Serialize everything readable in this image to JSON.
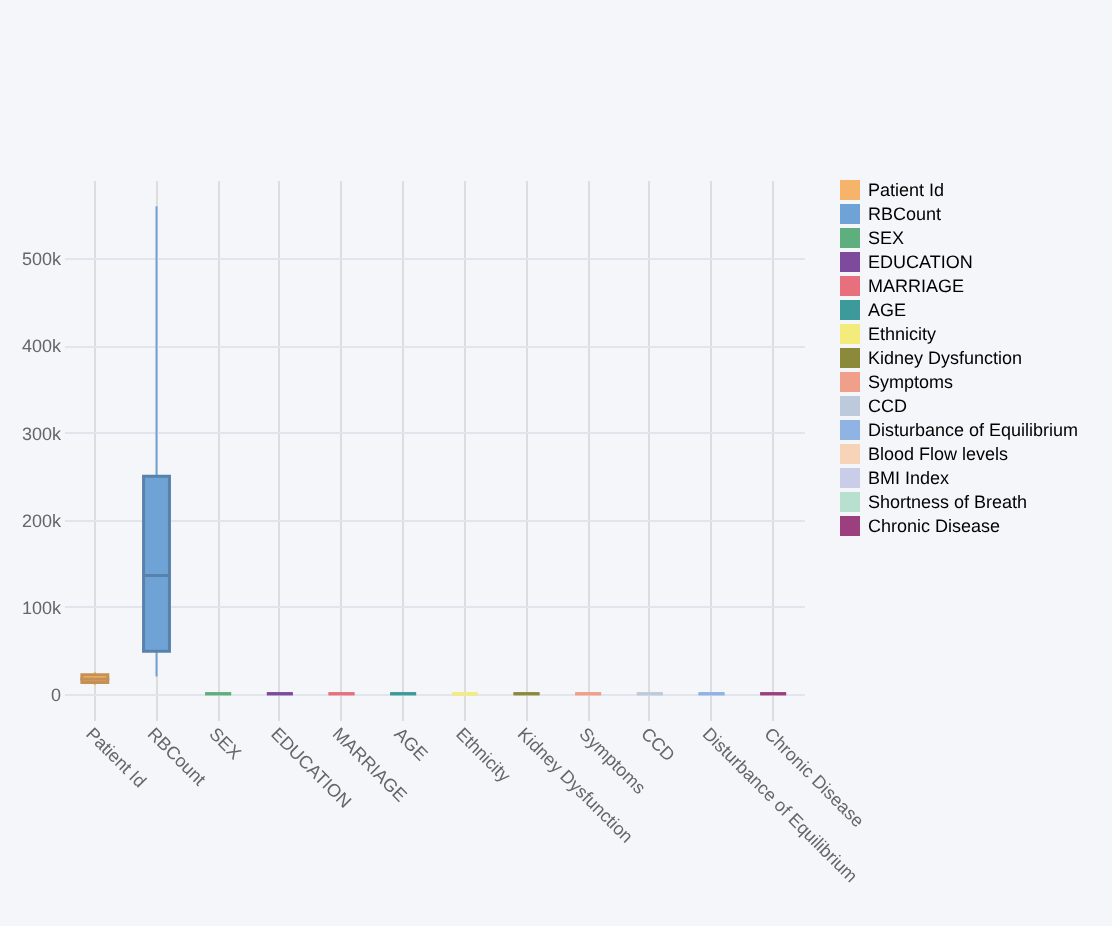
{
  "chart_data": {
    "type": "box",
    "categories": [
      "Patient Id",
      "RBCount",
      "SEX",
      "EDUCATION",
      "MARRIAGE",
      "AGE",
      "Ethnicity",
      "Kidney Dysfunction",
      "Symptoms",
      "CCD",
      "Disturbance of Equilibrium",
      "Chronic Disease"
    ],
    "series": [
      {
        "name": "Patient Id",
        "color": "#f5b46a",
        "boxes": [
          {
            "low": 10000,
            "q1": 13000,
            "median": 17000,
            "q3": 22000,
            "high": 25000
          },
          null,
          null,
          null,
          null,
          null,
          null,
          null,
          null,
          null,
          null,
          null
        ]
      },
      {
        "name": "RBCount",
        "color": "#6fa3d6",
        "boxes": [
          null,
          {
            "low": 20000,
            "q1": 49000,
            "median": 136000,
            "q3": 250000,
            "high": 560000
          },
          null,
          null,
          null,
          null,
          null,
          null,
          null,
          null,
          null,
          null
        ]
      },
      {
        "name": "SEX",
        "color": "#5fae7e",
        "boxes": [
          null,
          null,
          {
            "low": 0,
            "q1": 0,
            "median": 0,
            "q3": 0,
            "high": 0
          },
          null,
          null,
          null,
          null,
          null,
          null,
          null,
          null,
          null
        ]
      },
      {
        "name": "EDUCATION",
        "color": "#7d4a9c",
        "boxes": [
          null,
          null,
          null,
          {
            "low": 0,
            "q1": 0,
            "median": 0,
            "q3": 0,
            "high": 0
          },
          null,
          null,
          null,
          null,
          null,
          null,
          null,
          null
        ]
      },
      {
        "name": "MARRIAGE",
        "color": "#e8707c",
        "boxes": [
          null,
          null,
          null,
          null,
          {
            "low": 0,
            "q1": 0,
            "median": 0,
            "q3": 0,
            "high": 0
          },
          null,
          null,
          null,
          null,
          null,
          null,
          null
        ]
      },
      {
        "name": "AGE",
        "color": "#3d9a9a",
        "boxes": [
          null,
          null,
          null,
          null,
          null,
          {
            "low": 0,
            "q1": 0,
            "median": 0,
            "q3": 0,
            "high": 0
          },
          null,
          null,
          null,
          null,
          null,
          null
        ]
      },
      {
        "name": "Ethnicity",
        "color": "#f4ec7a",
        "boxes": [
          null,
          null,
          null,
          null,
          null,
          null,
          {
            "low": 0,
            "q1": 0,
            "median": 0,
            "q3": 0,
            "high": 0
          },
          null,
          null,
          null,
          null,
          null
        ]
      },
      {
        "name": "Kidney Dysfunction",
        "color": "#8a8a3a",
        "boxes": [
          null,
          null,
          null,
          null,
          null,
          null,
          null,
          {
            "low": 0,
            "q1": 0,
            "median": 0,
            "q3": 0,
            "high": 0
          },
          null,
          null,
          null,
          null
        ]
      },
      {
        "name": "Symptoms",
        "color": "#f0a08a",
        "boxes": [
          null,
          null,
          null,
          null,
          null,
          null,
          null,
          null,
          {
            "low": 0,
            "q1": 0,
            "median": 0,
            "q3": 0,
            "high": 0
          },
          null,
          null,
          null
        ]
      },
      {
        "name": "CCD",
        "color": "#bccadb",
        "boxes": [
          null,
          null,
          null,
          null,
          null,
          null,
          null,
          null,
          null,
          {
            "low": 0,
            "q1": 0,
            "median": 0,
            "q3": 0,
            "high": 0
          },
          null,
          null
        ]
      },
      {
        "name": "Disturbance of Equilibrium",
        "color": "#8fb3e3",
        "boxes": [
          null,
          null,
          null,
          null,
          null,
          null,
          null,
          null,
          null,
          null,
          {
            "low": 0,
            "q1": 0,
            "median": 0,
            "q3": 0,
            "high": 0
          },
          null
        ]
      },
      {
        "name": "Blood Flow levels",
        "color": "#f7d4b8",
        "boxes": [
          null,
          null,
          null,
          null,
          null,
          null,
          null,
          null,
          null,
          null,
          null,
          null
        ]
      },
      {
        "name": "BMI Index",
        "color": "#c9cde8",
        "boxes": [
          null,
          null,
          null,
          null,
          null,
          null,
          null,
          null,
          null,
          null,
          null,
          null
        ]
      },
      {
        "name": "Shortness of Breath",
        "color": "#b8e0cf",
        "boxes": [
          null,
          null,
          null,
          null,
          null,
          null,
          null,
          null,
          null,
          null,
          null,
          null
        ]
      },
      {
        "name": "Chronic Disease",
        "color": "#9c3f7e",
        "boxes": [
          null,
          null,
          null,
          null,
          null,
          null,
          null,
          null,
          null,
          null,
          null,
          {
            "low": 0,
            "q1": 0,
            "median": 0,
            "q3": 0,
            "high": 0
          }
        ]
      }
    ],
    "ylim": [
      -30000,
      590000
    ],
    "yticks": [
      0,
      {
        "value": 100000,
        "label": "100k"
      },
      {
        "value": 200000,
        "label": "200k"
      },
      {
        "value": 300000,
        "label": "300k"
      },
      {
        "value": 400000,
        "label": "400k"
      },
      {
        "value": 500000,
        "label": "500k"
      }
    ],
    "grid": true,
    "legend": "right"
  }
}
